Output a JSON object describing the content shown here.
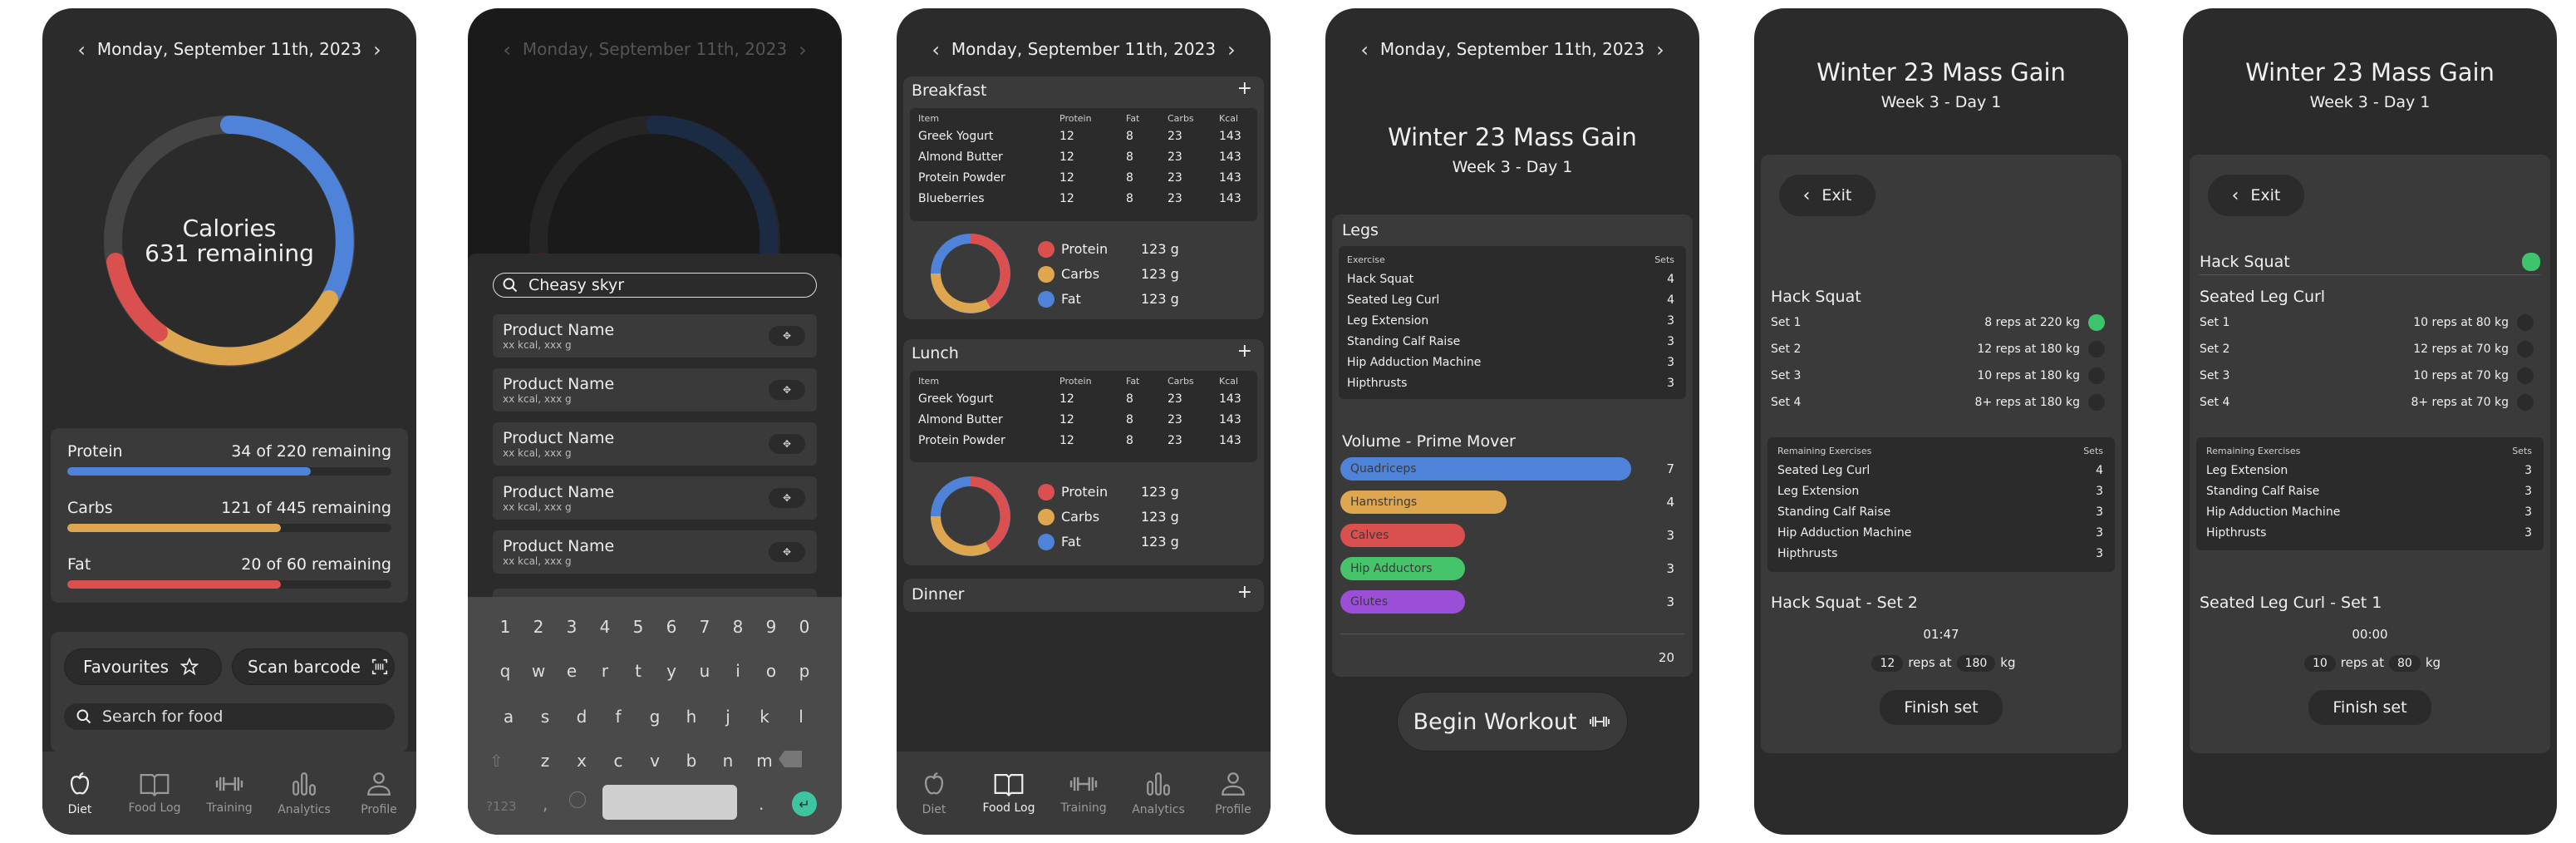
{
  "date_label": "Monday, September 11th, 2023",
  "nav": [
    "Diet",
    "Food Log",
    "Training",
    "Analytics",
    "Profile"
  ],
  "diet": {
    "ring_title": "Calories",
    "ring_sub": "631 remaining",
    "macros": [
      {
        "name": "Protein",
        "remaining": "34 of 220 remaining",
        "fraction": 0.75,
        "color": "#4f83d9"
      },
      {
        "name": "Carbs",
        "remaining": "121 of 445 remaining",
        "fraction": 0.66,
        "color": "#dea74f"
      },
      {
        "name": "Fat",
        "remaining": "20 of 60 remaining",
        "fraction": 0.66,
        "color": "#d9504f"
      }
    ],
    "favourites_label": "Favourites",
    "scan_label": "Scan barcode",
    "search_placeholder": "Search for food"
  },
  "search": {
    "query": "Cheasy skyr",
    "products": [
      {
        "name": "Product Name",
        "sub": "xx kcal, xxx g"
      },
      {
        "name": "Product Name",
        "sub": "xx kcal, xxx g"
      },
      {
        "name": "Product Name",
        "sub": "xx kcal, xxx g"
      },
      {
        "name": "Product Name",
        "sub": "xx kcal, xxx g"
      },
      {
        "name": "Product Name",
        "sub": "xx kcal, xxx g"
      }
    ],
    "keys_row1": [
      "1",
      "2",
      "3",
      "4",
      "5",
      "6",
      "7",
      "8",
      "9",
      "0"
    ],
    "keys_row2": [
      "q",
      "w",
      "e",
      "r",
      "t",
      "y",
      "u",
      "i",
      "o",
      "p"
    ],
    "keys_row3": [
      "a",
      "s",
      "d",
      "f",
      "g",
      "h",
      "j",
      "k",
      "l"
    ],
    "keys_row4": [
      "z",
      "x",
      "c",
      "v",
      "b",
      "n",
      "m"
    ],
    "key_sym": "?123",
    "key_comma": ",",
    "key_period": "."
  },
  "foodlog": {
    "headers": [
      "Item",
      "Protein",
      "Fat",
      "Carbs",
      "Kcal"
    ],
    "meals": [
      {
        "name": "Breakfast",
        "add": "+",
        "rows": [
          [
            "Greek Yogurt",
            "12",
            "8",
            "23",
            "143"
          ],
          [
            "Almond Butter",
            "12",
            "8",
            "23",
            "143"
          ],
          [
            "Protein Powder",
            "12",
            "8",
            "23",
            "143"
          ],
          [
            "Blueberries",
            "12",
            "8",
            "23",
            "143"
          ]
        ]
      },
      {
        "name": "Lunch",
        "add": "+",
        "rows": [
          [
            "Greek Yogurt",
            "12",
            "8",
            "23",
            "143"
          ],
          [
            "Almond Butter",
            "12",
            "8",
            "23",
            "143"
          ],
          [
            "Protein Powder",
            "12",
            "8",
            "23",
            "143"
          ]
        ]
      },
      {
        "name": "Dinner",
        "add": "+",
        "rows": []
      }
    ],
    "legend": [
      {
        "name": "Protein",
        "value": "123 g",
        "color": "#d9504f"
      },
      {
        "name": "Carbs",
        "value": "123 g",
        "color": "#dea74f"
      },
      {
        "name": "Fat",
        "value": "123 g",
        "color": "#4f83d9"
      }
    ]
  },
  "workout": {
    "title": "Winter 23 Mass Gain",
    "subtitle": "Week 3 - Day 1",
    "section": "Legs",
    "ex_header": "Exercise",
    "sets_header": "Sets",
    "exercises": [
      [
        "Hack Squat",
        "4"
      ],
      [
        "Seated Leg Curl",
        "4"
      ],
      [
        "Leg Extension",
        "3"
      ],
      [
        "Standing Calf Raise",
        "3"
      ],
      [
        "Hip Adduction Machine",
        "3"
      ],
      [
        "Hipthrusts",
        "3"
      ]
    ],
    "volume_title": "Volume - Prime Mover",
    "volume": [
      {
        "name": "Quadriceps",
        "value": 7,
        "color": "#4f83d9"
      },
      {
        "name": "Hamstrings",
        "value": 4,
        "color": "#dea74f"
      },
      {
        "name": "Calves",
        "value": 3,
        "color": "#d9504f"
      },
      {
        "name": "Hip Adductors",
        "value": 3,
        "color": "#45c46a"
      },
      {
        "name": "Glutes",
        "value": 3,
        "color": "#9b4fd9"
      }
    ],
    "volume_total": "20",
    "begin_label": "Begin Workout"
  },
  "session1": {
    "exit_label": "Exit",
    "current": "Hack Squat",
    "sets": [
      {
        "label": "Set 1",
        "text": "8 reps at 220 kg",
        "done": true
      },
      {
        "label": "Set 2",
        "text": "12 reps at 180 kg",
        "done": false
      },
      {
        "label": "Set 3",
        "text": "10 reps at 180 kg",
        "done": false
      },
      {
        "label": "Set 4",
        "text": "8+ reps at 180 kg",
        "done": false
      }
    ],
    "remaining_header": "Remaining Exercises",
    "sets_header": "Sets",
    "remaining": [
      [
        "Seated Leg Curl",
        "4"
      ],
      [
        "Leg Extension",
        "3"
      ],
      [
        "Standing Calf Raise",
        "3"
      ],
      [
        "Hip Adduction Machine",
        "3"
      ],
      [
        "Hipthrusts",
        "3"
      ]
    ],
    "set_title": "Hack Squat - Set 2",
    "timer": "01:47",
    "reps": "12",
    "reps_at": "reps at",
    "weight": "180",
    "unit": "kg",
    "finish_label": "Finish set"
  },
  "session2": {
    "exit_label": "Exit",
    "completed": "Hack Squat",
    "current": "Seated Leg Curl",
    "sets": [
      {
        "label": "Set 1",
        "text": "10 reps at 80 kg",
        "done": false
      },
      {
        "label": "Set 2",
        "text": "12 reps at 70 kg",
        "done": false
      },
      {
        "label": "Set 3",
        "text": "10 reps at 70 kg",
        "done": false
      },
      {
        "label": "Set 4",
        "text": "8+ reps at 70 kg",
        "done": false
      }
    ],
    "remaining_header": "Remaining Exercises",
    "sets_header": "Sets",
    "remaining": [
      [
        "Leg Extension",
        "3"
      ],
      [
        "Standing Calf Raise",
        "3"
      ],
      [
        "Hip Adduction Machine",
        "3"
      ],
      [
        "Hipthrusts",
        "3"
      ]
    ],
    "set_title": "Seated Leg Curl - Set 1",
    "timer": "00:00",
    "reps": "10",
    "reps_at": "reps at",
    "weight": "80",
    "unit": "kg",
    "finish_label": "Finish set"
  }
}
